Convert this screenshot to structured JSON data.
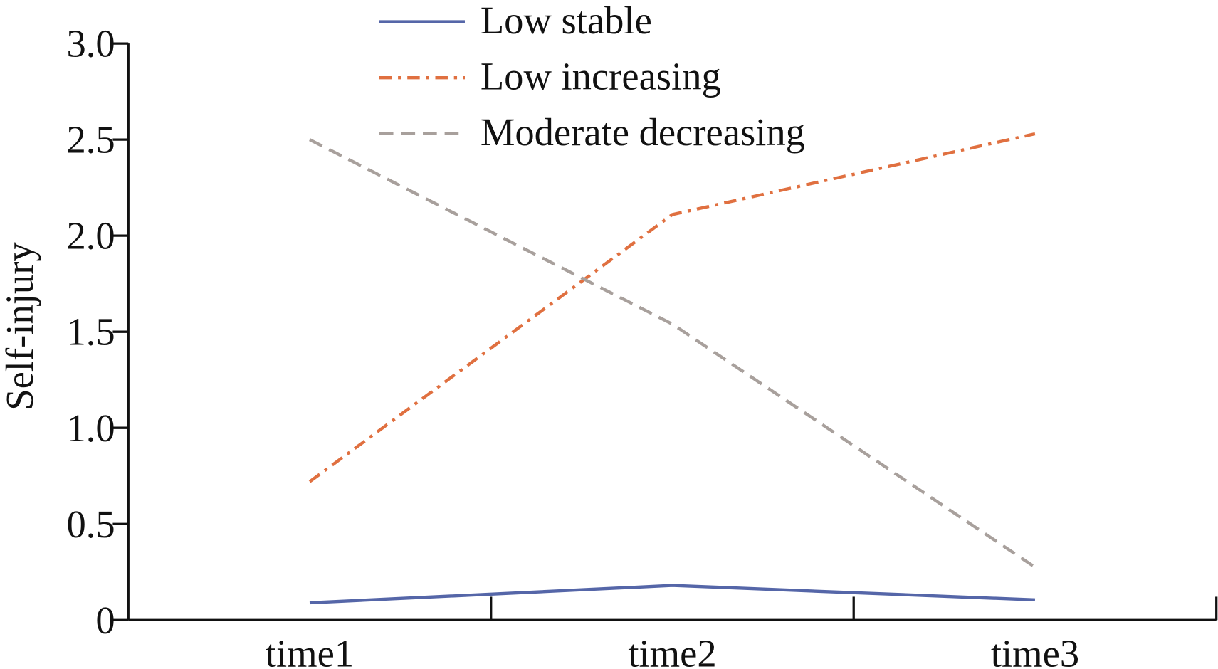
{
  "chart_data": {
    "type": "line",
    "title": "",
    "xlabel": "",
    "ylabel": "Self-injury",
    "categories": [
      "time1",
      "time2",
      "time3"
    ],
    "ylim": [
      0,
      3.0
    ],
    "yticks": [
      "0",
      "0.5",
      "1.0",
      "1.5",
      "2.0",
      "2.5",
      "3.0"
    ],
    "grid": false,
    "legend_position": "top-center",
    "series": [
      {
        "name": "Low stable",
        "values": [
          0.09,
          0.18,
          0.105
        ],
        "color": "#5566a8",
        "style": "solid"
      },
      {
        "name": "Low increasing",
        "values": [
          0.72,
          2.11,
          2.53
        ],
        "color": "#e07040",
        "style": "dashdot"
      },
      {
        "name": "Moderate decreasing",
        "values": [
          2.5,
          1.54,
          0.275
        ],
        "color": "#a8a09c",
        "style": "dashed"
      }
    ]
  }
}
